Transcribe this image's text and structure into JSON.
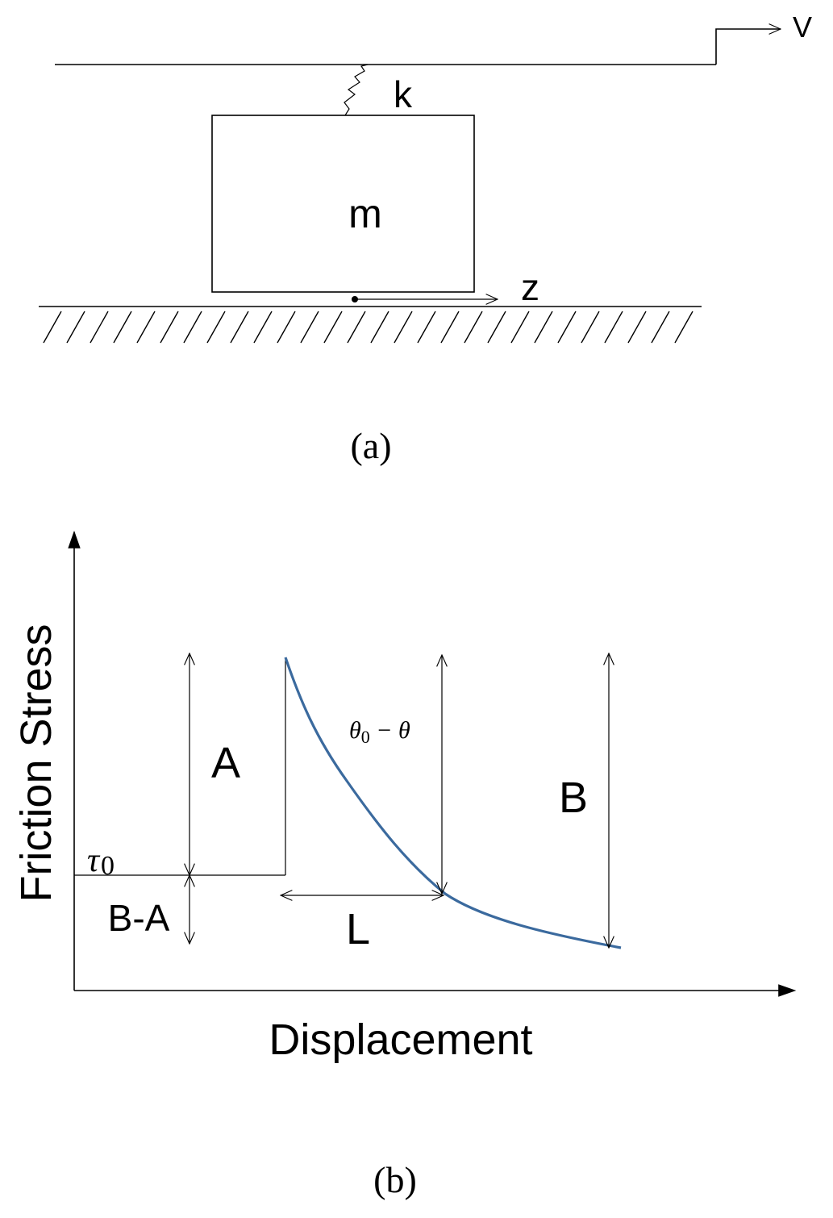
{
  "panel_a": {
    "caption": "(a)",
    "velocity_label": "V",
    "spring_label": "k",
    "mass_label": "m",
    "displacement_label": "z"
  },
  "panel_b": {
    "caption": "(b)",
    "y_axis_label": "Friction Stress",
    "x_axis_label": "Displacement",
    "tau_symbol": "τ",
    "tau_subscript": "0",
    "label_A": "A",
    "label_B": "B",
    "label_B_minus_A": "B-A",
    "label_L": "L",
    "theta_label_theta0": "θ",
    "theta_label_sub": "0",
    "theta_label_rest": " − θ",
    "curve_color": "#3b6a9e"
  }
}
